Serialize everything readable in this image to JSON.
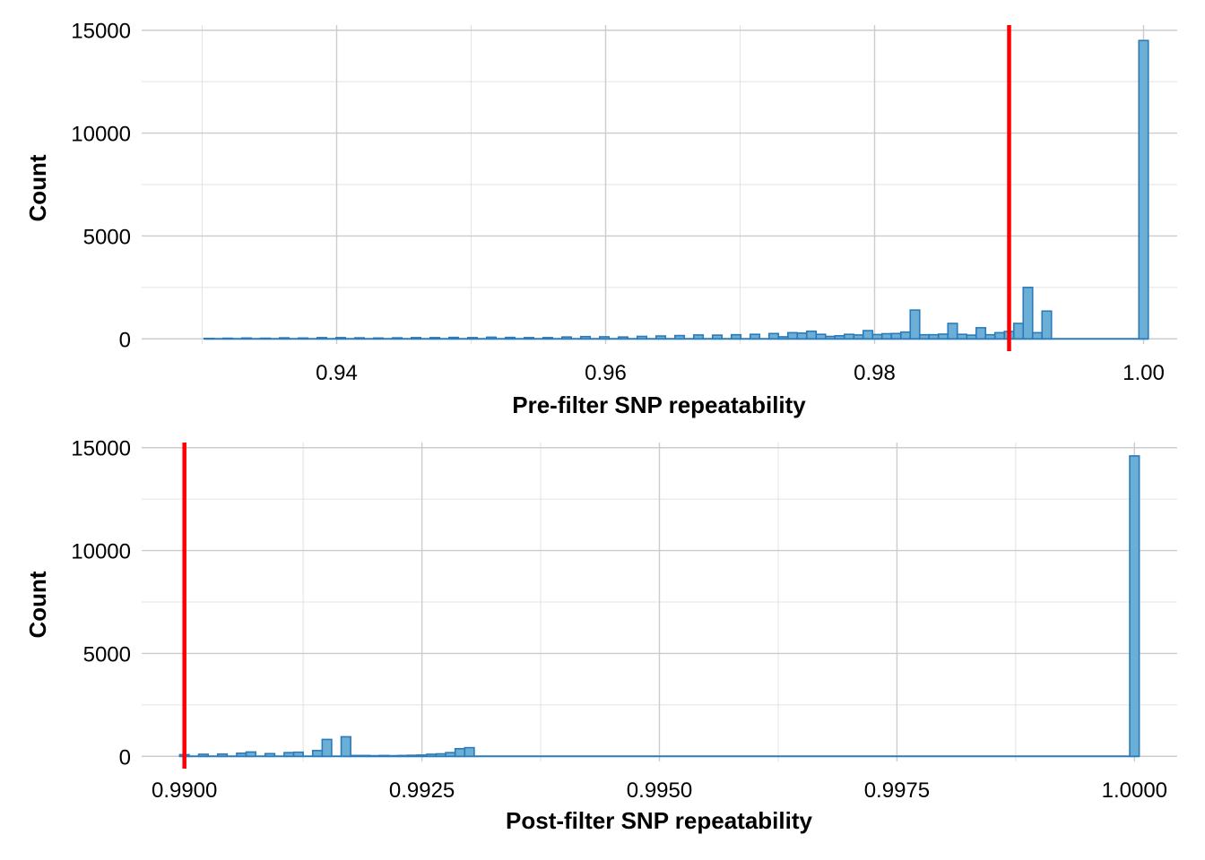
{
  "chart_data": [
    {
      "type": "bar",
      "xlabel": "Pre-filter SNP repeatability",
      "ylabel": "Count",
      "xlim": [
        0.9255,
        1.0025
      ],
      "ylim": [
        -250,
        15250
      ],
      "x_ticks": [
        0.94,
        0.96,
        0.98,
        1.0
      ],
      "x_tick_labels": [
        "0.94",
        "0.96",
        "0.98",
        "1.00"
      ],
      "y_ticks": [
        0,
        5000,
        10000,
        15000
      ],
      "y_tick_labels": [
        "0",
        "5000",
        "10000",
        "15000"
      ],
      "bin_width": 0.0007,
      "threshold": 0.99,
      "bars": {
        "x": [
          0.9305,
          0.9319,
          0.9333,
          0.9347,
          0.9361,
          0.9375,
          0.9389,
          0.9403,
          0.9417,
          0.9431,
          0.9445,
          0.9459,
          0.9473,
          0.9487,
          0.9501,
          0.9515,
          0.9529,
          0.9543,
          0.9557,
          0.9571,
          0.9585,
          0.9599,
          0.9613,
          0.9627,
          0.9641,
          0.9655,
          0.9669,
          0.9683,
          0.9697,
          0.9711,
          0.9725,
          0.9732,
          0.9739,
          0.9746,
          0.9753,
          0.976,
          0.9767,
          0.9774,
          0.9781,
          0.9788,
          0.9795,
          0.9802,
          0.9809,
          0.9816,
          0.9823,
          0.983,
          0.9837,
          0.9844,
          0.9851,
          0.9858,
          0.9865,
          0.9872,
          0.9879,
          0.9886,
          0.9893,
          0.99,
          0.9907,
          0.9914,
          0.9921,
          0.9928,
          1.0
        ],
        "values": [
          20,
          30,
          40,
          30,
          50,
          40,
          60,
          60,
          50,
          40,
          50,
          60,
          60,
          70,
          60,
          80,
          70,
          60,
          60,
          90,
          110,
          100,
          90,
          120,
          140,
          160,
          190,
          180,
          200,
          220,
          260,
          100,
          300,
          280,
          370,
          220,
          120,
          150,
          220,
          190,
          400,
          210,
          250,
          260,
          330,
          1400,
          200,
          200,
          230,
          750,
          220,
          180,
          540,
          200,
          300,
          360,
          750,
          2500,
          300,
          1350,
          14500
        ]
      }
    },
    {
      "type": "bar",
      "xlabel": "Post-filter SNP repeatability",
      "ylabel": "Count",
      "xlim": [
        0.98955,
        1.00045
      ],
      "ylim": [
        -250,
        15250
      ],
      "x_ticks": [
        0.99,
        0.9925,
        0.995,
        0.9975,
        1.0
      ],
      "x_tick_labels": [
        "0.9900",
        "0.9925",
        "0.9950",
        "0.9975",
        "1.0000"
      ],
      "y_ticks": [
        0,
        5000,
        10000,
        15000
      ],
      "y_tick_labels": [
        "0",
        "5000",
        "10000",
        "15000"
      ],
      "bin_width": 0.0001,
      "threshold": 0.99,
      "bars": {
        "x": [
          0.99,
          0.9902,
          0.9904,
          0.9906,
          0.9907,
          0.9909,
          0.9911,
          0.9912,
          0.9914,
          0.9915,
          0.9917,
          0.9918,
          0.9919,
          0.992,
          0.9921,
          0.9922,
          0.9923,
          0.9924,
          0.9925,
          0.9926,
          0.9927,
          0.9928,
          0.9929,
          0.993,
          1.0
        ],
        "values": [
          80,
          100,
          110,
          150,
          210,
          130,
          180,
          200,
          280,
          820,
          950,
          40,
          40,
          30,
          40,
          30,
          40,
          50,
          60,
          100,
          120,
          180,
          370,
          420,
          14600
        ]
      }
    }
  ],
  "colors": {
    "bar_fill": "#6baed6",
    "bar_stroke": "#2b7bba",
    "threshold_line": "#ff0000",
    "grid": "#cccccc"
  }
}
